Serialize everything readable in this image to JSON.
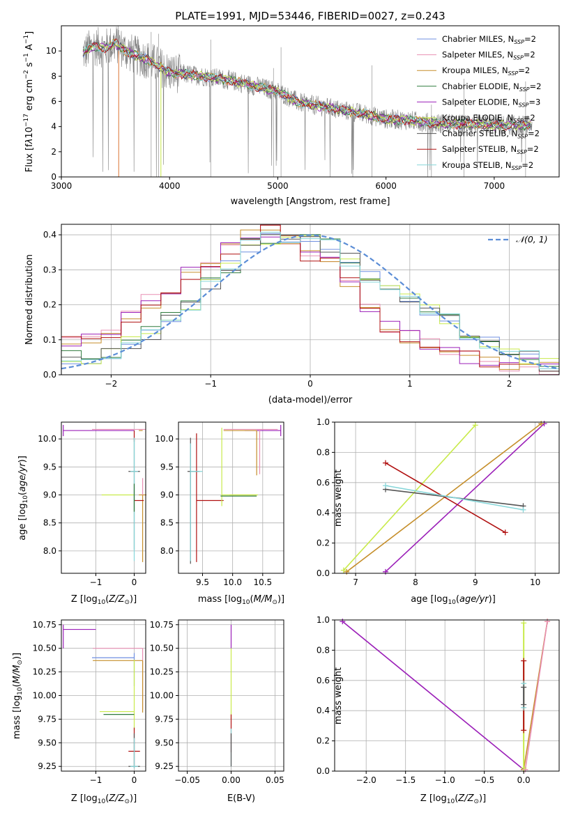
{
  "colors": [
    "#6f8fe0",
    "#e88fb3",
    "#c58e2a",
    "#2e7a3c",
    "#9b1fb8",
    "#c8ea4a",
    "#555555",
    "#b01010",
    "#86d6d9"
  ],
  "chart_data": [
    {
      "type": "line",
      "title": "PLATE=1991, MJD=53446, FIBERID=0027, z=0.243",
      "xlabel": "wavelength [Angstrom, rest frame]",
      "ylabel": "Flux [f_λ 10^-17 erg cm^-2 s^-1 A^-1]",
      "xlim": [
        3000,
        7600
      ],
      "ylim": [
        0,
        12
      ],
      "xticks": [
        3000,
        4000,
        5000,
        6000,
        7000
      ],
      "yticks": [
        0,
        2,
        4,
        6,
        8,
        10
      ],
      "grid": false,
      "legend": "top-right",
      "data_color": "#808080",
      "data_x_range": [
        3200,
        7350
      ],
      "series": [
        {
          "name": "Chabrier MILES, N_SSP=2"
        },
        {
          "name": "Salpeter MILES, N_SSP=2"
        },
        {
          "name": "Kroupa MILES, N_SSP=2"
        },
        {
          "name": "Chabrier ELODIE, N_SSP=2"
        },
        {
          "name": "Salpeter ELODIE, N_SSP=3"
        },
        {
          "name": "Kroupa ELODIE, N_SSP=2"
        },
        {
          "name": "Chabrier STELIB, N_SSP=2"
        },
        {
          "name": "Salpeter STELIB, N_SSP=2"
        },
        {
          "name": "Kroupa STELIB, N_SSP=2"
        }
      ],
      "model_curve": {
        "x": [
          3200,
          3300,
          3400,
          3500,
          3600,
          3700,
          3800,
          3900,
          4000,
          4200,
          4400,
          4600,
          4800,
          5000,
          5200,
          5400,
          5600,
          5800,
          6000,
          6200,
          6400,
          6600,
          6800,
          7000,
          7200,
          7350
        ],
        "y": [
          9.8,
          10.4,
          10.2,
          10.6,
          10.0,
          9.6,
          9.3,
          8.8,
          8.3,
          8.1,
          7.9,
          7.6,
          7.2,
          6.8,
          5.9,
          5.6,
          5.3,
          5.0,
          4.6,
          4.5,
          4.3,
          4.2,
          4.2,
          4.1,
          4.1,
          4.1
        ]
      }
    },
    {
      "type": "line",
      "xlabel": "(data-model)/error",
      "ylabel": "Normed distribution",
      "xlim": [
        -2.5,
        2.5
      ],
      "ylim": [
        0,
        0.43
      ],
      "xticks": [
        -2,
        -1,
        0,
        1,
        2
      ],
      "yticks": [
        0.0,
        0.1,
        0.2,
        0.3,
        0.4
      ],
      "grid": true,
      "legend": "top-right",
      "reference_label": "𝒩(0, 1)",
      "reference_color": "#5b8dd6",
      "bin_edges": [
        -2.5,
        -2.3,
        -2.1,
        -1.9,
        -1.7,
        -1.5,
        -1.3,
        -1.1,
        -0.9,
        -0.7,
        -0.5,
        -0.3,
        -0.1,
        0.1,
        0.3,
        0.5,
        0.7,
        0.9,
        1.1,
        1.3,
        1.5,
        1.7,
        1.9,
        2.1,
        2.3,
        2.5
      ],
      "hist_early": [
        0.09,
        0.1,
        0.12,
        0.17,
        0.21,
        0.25,
        0.29,
        0.32,
        0.36,
        0.4,
        0.41,
        0.39,
        0.34,
        0.32,
        0.26,
        0.2,
        0.14,
        0.11,
        0.09,
        0.06,
        0.05,
        0.04,
        0.03,
        0.03,
        0.02
      ],
      "hist_late": [
        0.05,
        0.04,
        0.06,
        0.09,
        0.12,
        0.16,
        0.2,
        0.26,
        0.31,
        0.37,
        0.39,
        0.38,
        0.4,
        0.37,
        0.33,
        0.28,
        0.25,
        0.22,
        0.19,
        0.16,
        0.12,
        0.09,
        0.07,
        0.05,
        0.03
      ]
    },
    {
      "type": "scatter",
      "xlabel": "Z [log10(Z/Z⊙)]",
      "ylabel": "age  [log10(age/yr)]",
      "xlim": [
        -1.9,
        0.3
      ],
      "ylim": [
        7.6,
        10.3
      ],
      "xticks": [
        -1,
        0
      ],
      "yticks": [
        8.0,
        8.5,
        9.0,
        9.5,
        10.0
      ],
      "grid": true
    },
    {
      "type": "scatter",
      "xlabel": "mass [log10(M/M⊙)]",
      "xlim": [
        9.1,
        10.85
      ],
      "ylim": [
        7.6,
        10.3
      ],
      "xticks": [
        9.5,
        10.0,
        10.5
      ],
      "yticks": [
        8.0,
        8.5,
        9.0,
        9.5,
        10.0
      ],
      "grid": true
    },
    {
      "type": "line",
      "xlabel": "age  [log10(age/yr)]",
      "ylabel": "mass weight",
      "xlim": [
        6.65,
        10.4
      ],
      "ylim": [
        0,
        1
      ],
      "xticks": [
        7,
        8,
        9,
        10
      ],
      "yticks": [
        0.0,
        0.2,
        0.4,
        0.6,
        0.8,
        1.0
      ],
      "grid": true,
      "segments": [
        {
          "series": 4,
          "x": [
            7.5,
            10.15
          ],
          "y": [
            0.01,
            0.99
          ]
        },
        {
          "series": 2,
          "x": [
            6.85,
            10.1
          ],
          "y": [
            0.01,
            0.99
          ]
        },
        {
          "series": 5,
          "x": [
            6.8,
            9.0
          ],
          "y": [
            0.02,
            0.98
          ]
        },
        {
          "series": 7,
          "x": [
            7.5,
            9.5
          ],
          "y": [
            0.73,
            0.27
          ]
        },
        {
          "series": 6,
          "x": [
            7.5,
            9.8
          ],
          "y": [
            0.555,
            0.445
          ]
        },
        {
          "series": 8,
          "x": [
            7.5,
            9.8
          ],
          "y": [
            0.58,
            0.42
          ]
        }
      ]
    },
    {
      "type": "scatter",
      "xlabel": "Z [log10(Z/Z⊙)]",
      "ylabel": "mass [log10(M/M⊙)]",
      "xlim": [
        -1.9,
        0.3
      ],
      "ylim": [
        9.2,
        10.8
      ],
      "xticks": [
        -1,
        0
      ],
      "yticks": [
        9.25,
        9.5,
        9.75,
        10.0,
        10.25,
        10.5,
        10.75
      ],
      "grid": true
    },
    {
      "type": "scatter",
      "xlabel": "E(B-V)",
      "xlim": [
        -0.06,
        0.06
      ],
      "ylim": [
        9.2,
        10.8
      ],
      "xticks": [
        -0.05,
        0.0,
        0.05
      ],
      "yticks": [
        9.25,
        9.5,
        9.75,
        10.0,
        10.25,
        10.5,
        10.75
      ],
      "grid": true
    },
    {
      "type": "line",
      "xlabel": "Z [log10(Z/Z⊙)]",
      "ylabel": "mass weight",
      "xlim": [
        -2.4,
        0.45
      ],
      "ylim": [
        0,
        1
      ],
      "xticks": [
        -2.0,
        -1.5,
        -1.0,
        -0.5,
        0.0
      ],
      "yticks": [
        0.0,
        0.2,
        0.4,
        0.6,
        0.8,
        1.0
      ],
      "grid": true,
      "segments": [
        {
          "series": 4,
          "x": [
            -2.3,
            0.0
          ],
          "y": [
            0.99,
            0.01
          ]
        },
        {
          "series": 2,
          "x": [
            0.0,
            0.3
          ],
          "y": [
            0.01,
            0.99
          ]
        },
        {
          "series": 1,
          "x": [
            0.02,
            0.3
          ],
          "y": [
            0.01,
            0.99
          ]
        }
      ],
      "vertical_marks_x": 0.0
    }
  ]
}
